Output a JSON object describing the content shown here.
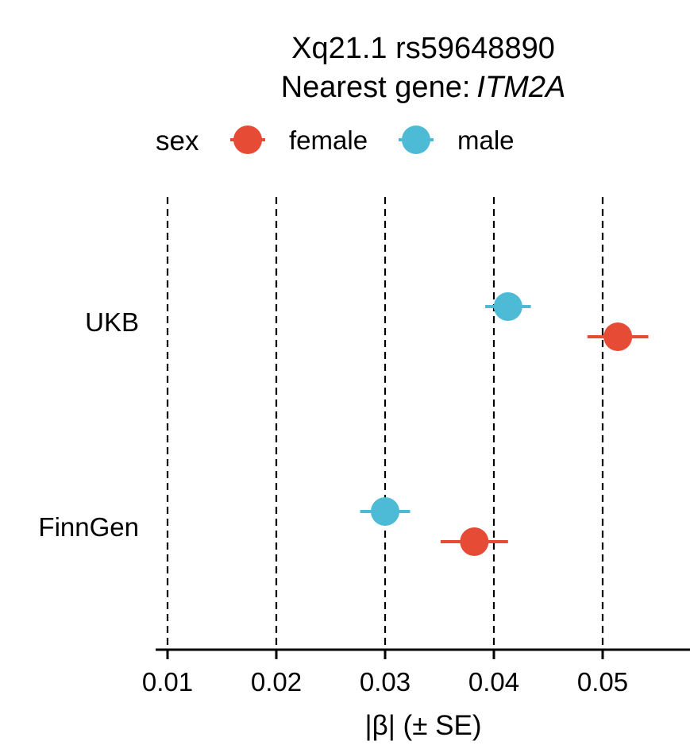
{
  "title_line1": "Xq21.1 rs59648890",
  "title_line2_prefix": "Nearest gene:",
  "title_line2_gene": "ITM2A",
  "legend": {
    "title": "sex",
    "items": [
      {
        "label": "female",
        "color": "#E64B35"
      },
      {
        "label": "male",
        "color": "#4DBBD5"
      }
    ]
  },
  "chart_data": {
    "type": "scatter",
    "subtype": "forest-plot with horizontal error bars",
    "xlabel": "|β| (± SE)",
    "ylabel": "",
    "xlim": [
      0.01,
      0.058
    ],
    "xticks": [
      0.01,
      0.02,
      0.03,
      0.04,
      0.05
    ],
    "xtick_labels": [
      "0.01",
      "0.02",
      "0.03",
      "0.04",
      "0.05"
    ],
    "vertical_reference_lines": [
      0.01,
      0.02,
      0.03,
      0.04,
      0.05
    ],
    "categories": [
      "UKB",
      "FinnGen"
    ],
    "series": [
      {
        "name": "female",
        "color": "#E64B35",
        "points": [
          {
            "category": "UKB",
            "beta": 0.0514,
            "se": 0.0028
          },
          {
            "category": "FinnGen",
            "beta": 0.0382,
            "se": 0.0031
          }
        ]
      },
      {
        "name": "male",
        "color": "#4DBBD5",
        "points": [
          {
            "category": "UKB",
            "beta": 0.0413,
            "se": 0.0021
          },
          {
            "category": "FinnGen",
            "beta": 0.03,
            "se": 0.0023
          }
        ]
      }
    ],
    "legend_position": "top",
    "grid": false
  }
}
